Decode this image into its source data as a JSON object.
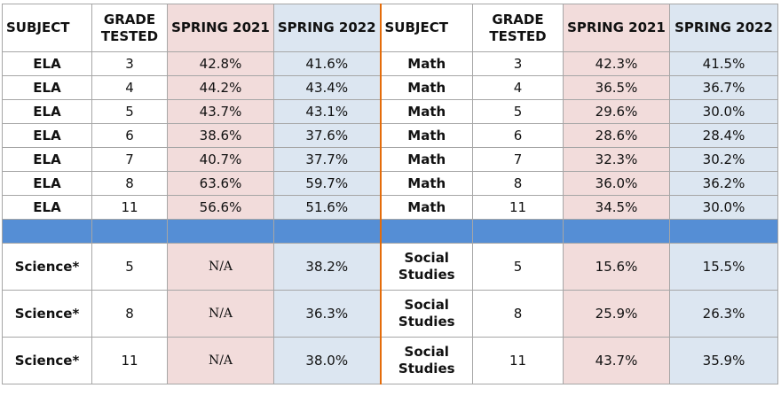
{
  "table": {
    "headers": [
      "SUBJECT",
      "GRADE TESTED",
      "SPRING 2021",
      "SPRING 2022",
      "SUBJECT",
      "GRADE TESTED",
      "SPRING 2021",
      "SPRING 2022"
    ],
    "rows": [
      [
        "ELA",
        "3",
        "42.8%",
        "41.6%",
        "Math",
        "3",
        "42.3%",
        "41.5%"
      ],
      [
        "ELA",
        "4",
        "44.2%",
        "43.4%",
        "Math",
        "4",
        "36.5%",
        "36.7%"
      ],
      [
        "ELA",
        "5",
        "43.7%",
        "43.1%",
        "Math",
        "5",
        "29.6%",
        "30.0%"
      ],
      [
        "ELA",
        "6",
        "38.6%",
        "37.6%",
        "Math",
        "6",
        "28.6%",
        "28.4%"
      ],
      [
        "ELA",
        "7",
        "40.7%",
        "37.7%",
        "Math",
        "7",
        "32.3%",
        "30.2%"
      ],
      [
        "ELA",
        "8",
        "63.6%",
        "59.7%",
        "Math",
        "8",
        "36.0%",
        "36.2%"
      ],
      [
        "ELA",
        "11",
        "56.6%",
        "51.6%",
        "Math",
        "11",
        "34.5%",
        "30.0%"
      ],
      [
        "Science*",
        "5",
        "N/A",
        "38.2%",
        "Social Studies",
        "5",
        "15.6%",
        "15.5%"
      ],
      [
        "Science*",
        "8",
        "N/A",
        "36.3%",
        "Social Studies",
        "8",
        "25.9%",
        "26.3%"
      ],
      [
        "Science*",
        "11",
        "N/A",
        "38.0%",
        "Social Studies",
        "11",
        "43.7%",
        "35.9%"
      ]
    ]
  }
}
